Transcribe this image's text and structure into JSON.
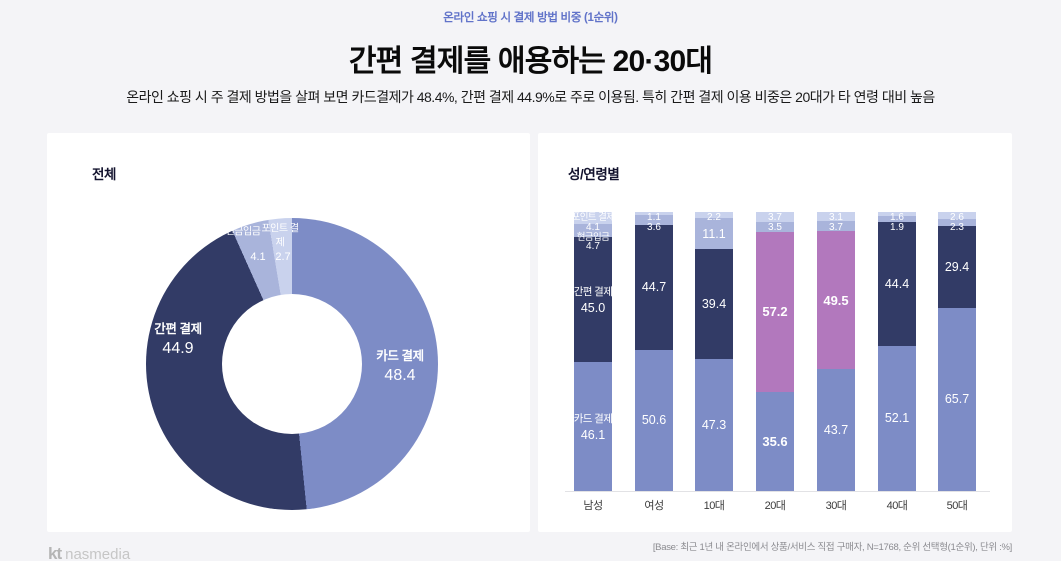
{
  "header": {
    "eyebrow": "온라인 쇼핑 시 결제 방법 비중 (1순위)",
    "title": "간편 결제를 애용하는 20·30대",
    "subtitle": "온라인 쇼핑 시 주 결제 방법을 살펴 보면 카드결제가 48.4%, 간편 결제 44.9%로 주로 이용됨. 특히 간편 결제 이용 비중은 20대가 타 연령 대비 높음"
  },
  "colors": {
    "card": "#7d8cc6",
    "easy": "#323b66",
    "cash": "#a9b4db",
    "point": "#c9d2ed",
    "highlight": "#b278bd",
    "accent_text": "#6173c9"
  },
  "footer": {
    "base_note": "[Base: 최근 1년 내 온라인에서 상품/서비스 직접 구매자, N=1768, 순위 선택형(1순위), 단위 :%]",
    "logo_kt": "kt",
    "logo_nasmedia": "nasmedia"
  },
  "chart_data": [
    {
      "type": "pie",
      "donut": true,
      "title": "전체",
      "unit": "%",
      "start_angle": "top-clockwise",
      "slices": [
        {
          "label": "카드 결제",
          "value": 48.4,
          "color_key": "card"
        },
        {
          "label": "간편 결제",
          "value": 44.9,
          "color_key": "easy"
        },
        {
          "label": "현금입금",
          "value": 4.1,
          "color_key": "cash"
        },
        {
          "label": "포인트 결제",
          "value": 2.7,
          "color_key": "point"
        }
      ]
    },
    {
      "type": "bar",
      "subtype": "stacked",
      "title": "성/연령별",
      "unit": "%",
      "ylim": [
        0,
        100
      ],
      "grid": false,
      "categories": [
        "남성",
        "여성",
        "10대",
        "20대",
        "30대",
        "40대",
        "50대"
      ],
      "series": [
        {
          "name": "카드 결제",
          "color_key": "card",
          "values": [
            46.1,
            50.6,
            47.3,
            35.6,
            43.7,
            52.1,
            65.7
          ],
          "bold_indices": [
            3
          ]
        },
        {
          "name": "간편 결제",
          "color_key": "easy",
          "values": [
            45.0,
            44.7,
            39.4,
            57.2,
            49.5,
            44.4,
            29.4
          ],
          "highlight_indices": [
            3,
            4
          ],
          "bold_indices": [
            3,
            4
          ]
        },
        {
          "name": "현금입금",
          "color_key": "cash",
          "values": [
            4.7,
            3.6,
            11.1,
            3.5,
            3.7,
            1.9,
            2.3
          ]
        },
        {
          "name": "포인트 결제",
          "color_key": "point",
          "values": [
            4.1,
            1.1,
            2.2,
            3.7,
            3.1,
            1.6,
            2.6
          ]
        }
      ]
    }
  ]
}
